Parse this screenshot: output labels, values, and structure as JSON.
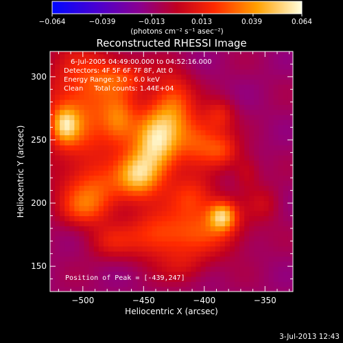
{
  "chart_data": {
    "type": "heatmap",
    "title": "Reconstructed RHESSI Image",
    "xlabel": "Heliocentric X (arcsec)",
    "ylabel": "Heliocentric Y (arcsec)",
    "xlim": [
      -527,
      -327
    ],
    "ylim": [
      130,
      320
    ],
    "xticks": [
      -500,
      -450,
      -400,
      -350
    ],
    "yticks": [
      150,
      200,
      250,
      300
    ],
    "colorbar": {
      "label": "(photons cm⁻² s⁻¹ asec⁻²)",
      "range": [
        -0.064,
        0.064
      ],
      "ticks": [
        "-0.064",
        "-0.039",
        "-0.013",
        "0.013",
        "0.039",
        "0.064"
      ]
    },
    "info_lines": [
      "6-Jul-2005 04:49:00.000 to 04:52:16.000",
      "Detectors: 4F 5F 6F 7F 8F, Att 0",
      "Energy Range: 3.0 - 6.0 keV",
      "Clean     Total counts: 1.44E+04"
    ],
    "peak_label": "Position of Peak = [-439,247]",
    "peak_position": [
      -439,
      247
    ],
    "sources": [
      {
        "x": -440,
        "y": 247,
        "sx": 14,
        "sy": 20,
        "amp": 0.064
      },
      {
        "x": -455,
        "y": 222,
        "sx": 12,
        "sy": 12,
        "amp": 0.045
      },
      {
        "x": -470,
        "y": 265,
        "sx": 10,
        "sy": 14,
        "amp": 0.032
      },
      {
        "x": -500,
        "y": 275,
        "sx": 22,
        "sy": 35,
        "amp": 0.038
      },
      {
        "x": -515,
        "y": 262,
        "sx": 8,
        "sy": 10,
        "amp": 0.042
      },
      {
        "x": -468,
        "y": 300,
        "sx": 18,
        "sy": 10,
        "amp": 0.026
      },
      {
        "x": -425,
        "y": 278,
        "sx": 12,
        "sy": 18,
        "amp": 0.035
      },
      {
        "x": -405,
        "y": 250,
        "sx": 12,
        "sy": 14,
        "amp": 0.034
      },
      {
        "x": -385,
        "y": 242,
        "sx": 10,
        "sy": 10,
        "amp": 0.028
      },
      {
        "x": -387,
        "y": 270,
        "sx": 9,
        "sy": 9,
        "amp": 0.022
      },
      {
        "x": -410,
        "y": 205,
        "sx": 14,
        "sy": 12,
        "amp": 0.03
      },
      {
        "x": -385,
        "y": 190,
        "sx": 8,
        "sy": 8,
        "amp": 0.048
      },
      {
        "x": -397,
        "y": 178,
        "sx": 22,
        "sy": 14,
        "amp": 0.03
      },
      {
        "x": -440,
        "y": 175,
        "sx": 18,
        "sy": 14,
        "amp": 0.032
      },
      {
        "x": -488,
        "y": 210,
        "sx": 20,
        "sy": 14,
        "amp": 0.03
      },
      {
        "x": -500,
        "y": 195,
        "sx": 14,
        "sy": 10,
        "amp": 0.022
      },
      {
        "x": -478,
        "y": 170,
        "sx": 14,
        "sy": 10,
        "amp": 0.018
      },
      {
        "x": -350,
        "y": 200,
        "sx": 10,
        "sy": 10,
        "amp": 0.014
      },
      {
        "x": -416,
        "y": 150,
        "sx": 14,
        "sy": 10,
        "amp": 0.015
      },
      {
        "x": -365,
        "y": 225,
        "sx": 8,
        "sy": 10,
        "amp": 0.016
      }
    ],
    "background_level": -0.012
  },
  "timestamp": "3-Jul-2013 12:43"
}
